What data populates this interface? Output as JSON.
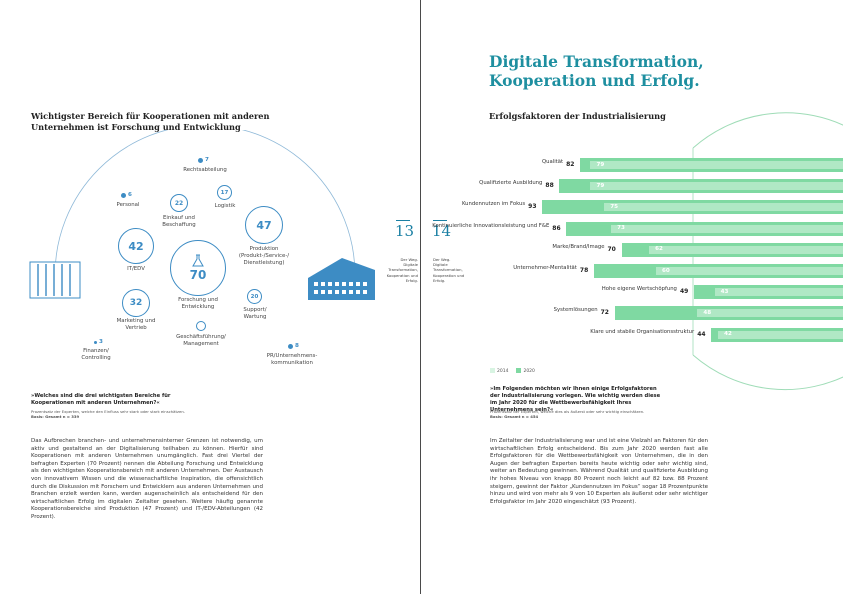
{
  "left": {
    "title": "Wichtigster Bereich für Kooperationen mit anderen Unternehmen ist Forschung und Entwicklung",
    "areas": [
      {
        "value": "7",
        "label": "Rechtsabteilung"
      },
      {
        "value": "6",
        "label": "Personal"
      },
      {
        "value": "22",
        "label": "Einkauf und Beschaffung"
      },
      {
        "value": "17",
        "label": "Logistik"
      },
      {
        "value": "47",
        "label": "Produktion (Produkt-/Service-/ Dienstleistung)"
      },
      {
        "value": "42",
        "label": "IT/EDV"
      },
      {
        "value": "70",
        "label": "Forschung und Entwicklung"
      },
      {
        "value": "32",
        "label": "Marketing und Vertrieb"
      },
      {
        "value": "20",
        "label": "Support/ Wartung"
      },
      {
        "value": "3",
        "label": "Finanzen/ Controlling"
      },
      {
        "value": "",
        "label": "Geschäftsführung/ Management"
      },
      {
        "value": "8",
        "label": "PR/Unternehmens-kommunikation"
      }
    ],
    "quote": "»Welches sind die drei wichtigsten Bereiche für Kooperationen mit anderen Unternehmen?«",
    "note1": "Prozentsatz der Experten, welche den Einfluss sehr stark oder stark einschätzen.",
    "note2": "Basis: Gesamt n = 339",
    "body": "Das Aufbrechen branchen- und unternehmensinterner Grenzen ist notwendig, um aktiv und gestaltend an der Digitalisierung teilhaben zu können. Hierfür sind Kooperationen mit anderen Unternehmen unumgänglich. Fast drei Viertel der befragten Experten (70 Prozent) nennen die Abteilung Forschung und Entwicklung als den wichtigsten Kooperationsbereich mit anderen Unternehmen. Der Austausch von innovativem Wissen und die wissenschaftliche Inspiration, die offensichtlich durch die Diskussion mit Forschern und Entwicklern aus anderen Unternehmen und Branchen erzielt werden kann, werden augenscheinlich als entscheidend für den wirtschaftlichen Erfolg im digitalen Zeitalter gesehen. Weitere häufig genannte Kooperationsbereiche sind Produktion (47 Prozent) und IT-/EDV-Abteilungen (42 Prozent).",
    "page_number": "13",
    "side_note": "Der Weg. Digitale Transformation, Kooperation und Erfolg."
  },
  "right": {
    "title": "Digitale Transformation, Kooperation und Erfolg.",
    "subtitle": "Erfolgsfaktoren der Industrialisierung",
    "page_number": "14",
    "side_note": "Der Weg. Digitale Transformation, Kooperation und Erfolg.",
    "quote": "»Im Folgenden möchten wir Ihnen einige Erfolgsfaktoren der Industrialisierung vorlegen. Wie wichtig werden diese im Jahr 2020 für die Wettbewerbsfähigkeit Ihres Unternehmens sein?«",
    "note1": "Prozentsatz der Experten, welche dies als äußerst oder sehr wichtig einschätzen.",
    "note2": "Basis: Gesamt n = 454",
    "body": "Im Zeitalter der Industrialisierung war und ist eine Vielzahl an Faktoren für den wirtschaftlichen Erfolg entscheidend. Bis zum Jahr 2020 werden fast alle Erfolgsfaktoren für die Wettbewerbsfähigkeit von Unternehmen, die in den Augen der befragten Experten bereits heute wichtig oder sehr wichtig sind, weiter an Bedeutung gewinnen. Während Qualität und qualifizierte Ausbildung ihr hohes Niveau von knapp 80 Prozent noch leicht auf 82 bzw. 88 Prozent steigern, gewinnt der Faktor „Kundennutzen im Fokus“ sogar 18 Prozentpunkte hinzu und wird von mehr als 9 von 10 Experten als äußerst oder sehr wichtiger Erfolgsfaktor im Jahr 2020 eingeschätzt (93 Prozent).",
    "legend_2014": "2014",
    "legend_2020": "2020"
  },
  "chart_data": {
    "type": "bar",
    "title": "Erfolgsfaktoren der Industrialisierung",
    "categories": [
      "Qualität",
      "Qualifizierte Ausbildung",
      "Kundennutzen im Fokus",
      "Kontinuierliche Innovationsleistung und F&E",
      "Marke/Brand/Image",
      "Unternehmer-Mentalität",
      "Hohe eigene Wertschöpfung",
      "Systemlösungen",
      "Klare und stabile Organisationsstruktur"
    ],
    "series": [
      {
        "name": "2014",
        "values": [
          79,
          79,
          75,
          73,
          62,
          60,
          43,
          48,
          42
        ]
      },
      {
        "name": "2020",
        "values": [
          82,
          88,
          93,
          86,
          70,
          78,
          49,
          72,
          44
        ]
      }
    ],
    "colors": {
      "2014": "#d8f4e2",
      "2020": "#7fd9a2"
    },
    "legend": "bottom-left"
  }
}
